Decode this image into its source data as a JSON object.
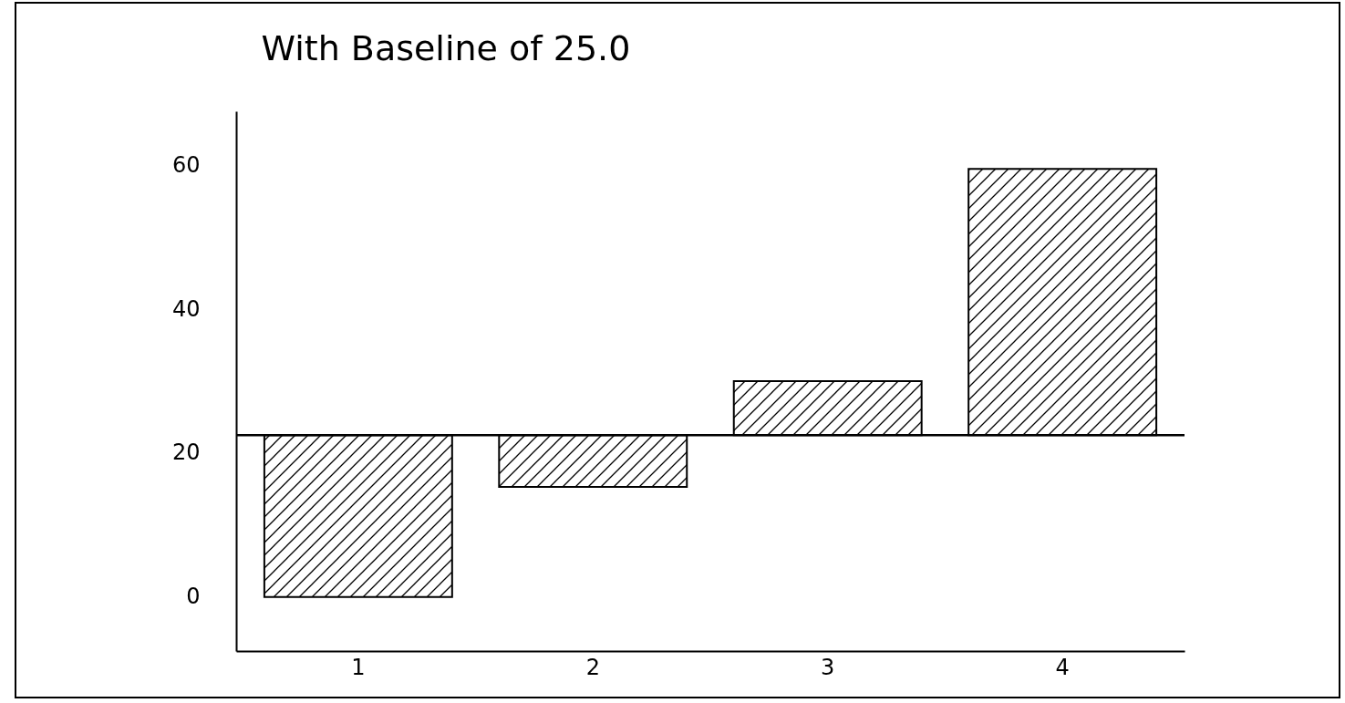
{
  "chart_data": {
    "type": "bar",
    "title": "With Baseline of 25.0",
    "categories": [
      "1",
      "2",
      "3",
      "4"
    ],
    "values": [
      -22.5,
      -7.2,
      7.5,
      37
    ],
    "base": [
      22.5,
      22.5,
      22.5,
      22.5
    ],
    "color": "#000000",
    "ylim": [
      -7.5,
      67.5
    ],
    "yticks": [
      0,
      20,
      40,
      60
    ],
    "ref_lines": [
      {
        "axis": "y",
        "value": 22.5
      }
    ],
    "grid": false
  }
}
